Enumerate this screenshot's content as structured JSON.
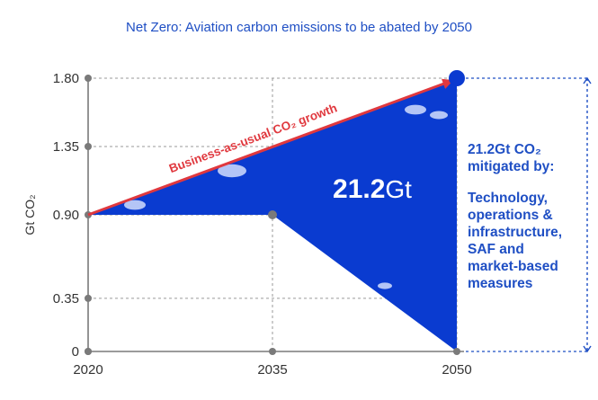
{
  "chart_data": {
    "type": "area",
    "title": "Net Zero: Aviation carbon emissions to be abated by 2050",
    "ylabel": "Gt CO₂",
    "x_ticks": [
      "2020",
      "2035",
      "2050"
    ],
    "y_ticks": [
      "0",
      "0.35",
      "0.90",
      "1.35",
      "1.80"
    ],
    "xlim": [
      2020,
      2050
    ],
    "ylim": [
      0,
      1.8
    ],
    "grid": true,
    "series": [
      {
        "name": "Business-as-usual CO₂ growth",
        "x": [
          2020,
          2050
        ],
        "y": [
          0.9,
          1.8
        ]
      },
      {
        "x": [
          2020,
          2035,
          2050
        ],
        "y": [
          0.9,
          0.9,
          0
        ]
      }
    ],
    "annotations": {
      "arrow_label": "Business-as-usual CO₂ growth",
      "center_value_bold": "21.2",
      "center_value_unit": "Gt",
      "side_heading": [
        "21.2Gt CO₂",
        "mitigated by:"
      ],
      "side_list": [
        "Technology,",
        "operations &",
        "infrastructure,",
        "SAF and",
        "market-based",
        "measures"
      ]
    },
    "colors": {
      "fill": "#0a3bd0",
      "arrow": "#e0383e",
      "text": "#1f4fc4",
      "grid": "#9a9a9a",
      "axis_dot": "#7a7a7a"
    }
  }
}
